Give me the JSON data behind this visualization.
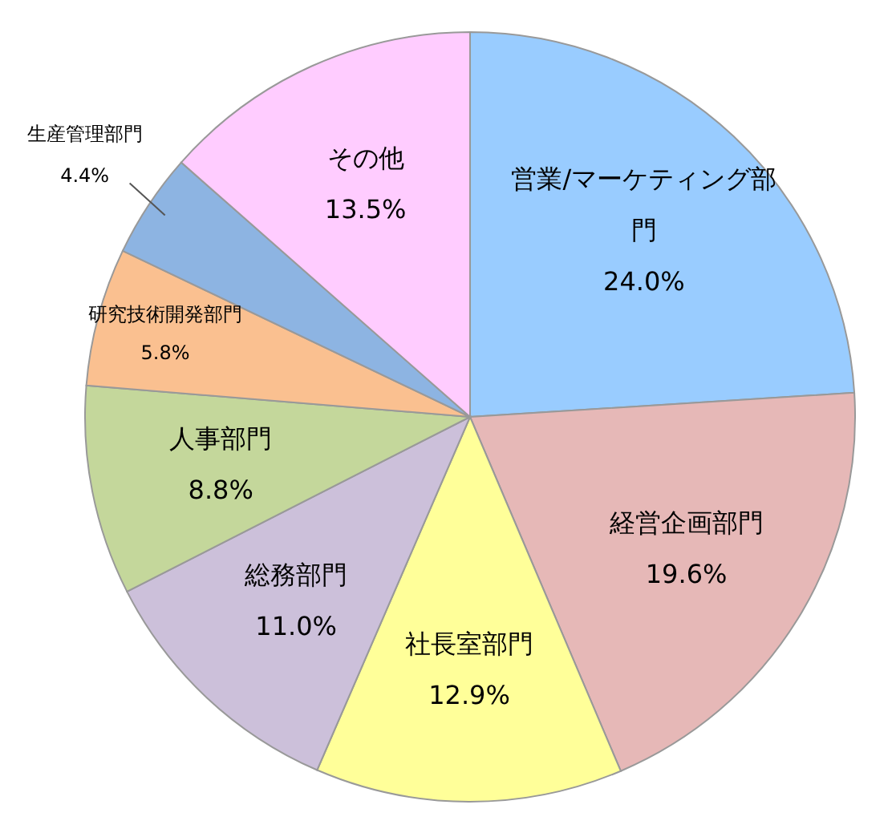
{
  "chart_data": {
    "type": "pie",
    "categories": [
      "営業/マーケティング部門",
      "経営企画部門",
      "社長室部門",
      "総務部門",
      "人事部門",
      "研究技術開発部門",
      "生産管理部門",
      "その他"
    ],
    "values": [
      24.0,
      19.6,
      12.9,
      11.0,
      8.8,
      5.8,
      4.4,
      13.5
    ],
    "value_labels": [
      "24.0%",
      "19.6%",
      "12.9%",
      "11.0%",
      "8.8%",
      "5.8%",
      "4.4%",
      "13.5%"
    ],
    "colors": [
      "#99ccff",
      "#e6b8b7",
      "#ffff99",
      "#ccc0da",
      "#c4d79b",
      "#fac090",
      "#8db4e2",
      "#ffccff"
    ]
  }
}
